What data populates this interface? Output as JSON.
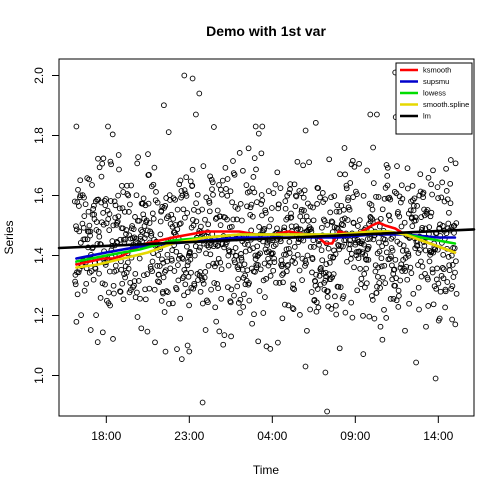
{
  "chart_data": {
    "type": "scatter",
    "title": "Demo with 1st var",
    "xlabel": "Time",
    "ylabel": "Series",
    "x_unit": "hours",
    "xlim": [
      15.15,
      40.15
    ],
    "ylim": [
      0.865,
      2.055
    ],
    "x_ticks": [
      {
        "value": 18,
        "label": "18:00"
      },
      {
        "value": 23,
        "label": "23:00"
      },
      {
        "value": 28,
        "label": "04:00"
      },
      {
        "value": 33,
        "label": "09:00"
      },
      {
        "value": 38,
        "label": "14:00"
      }
    ],
    "y_ticks": [
      {
        "value": 1.0,
        "label": "1.0"
      },
      {
        "value": 1.2,
        "label": "1.2"
      },
      {
        "value": 1.4,
        "label": "1.4"
      },
      {
        "value": 1.6,
        "label": "1.6"
      },
      {
        "value": 1.8,
        "label": "1.8"
      },
      {
        "value": 2.0,
        "label": "2.0"
      }
    ],
    "grid": false,
    "legend_position": "top-right",
    "points": {
      "count": 1200,
      "x_range": [
        16.1,
        39.1
      ],
      "mean": 1.45,
      "sd": 0.14,
      "notable": [
        {
          "x": 16.2,
          "y": 1.83
        },
        {
          "x": 18.1,
          "y": 1.83
        },
        {
          "x": 22.7,
          "y": 2.0
        },
        {
          "x": 23.2,
          "y": 1.99
        },
        {
          "x": 23.6,
          "y": 1.94
        },
        {
          "x": 23.4,
          "y": 1.87
        },
        {
          "x": 23.8,
          "y": 0.91
        },
        {
          "x": 23.0,
          "y": 1.08
        },
        {
          "x": 22.9,
          "y": 1.1
        },
        {
          "x": 27.4,
          "y": 1.83
        },
        {
          "x": 27.0,
          "y": 1.83
        },
        {
          "x": 31.3,
          "y": 0.88
        },
        {
          "x": 31.2,
          "y": 1.01
        },
        {
          "x": 30.0,
          "y": 1.03
        },
        {
          "x": 35.4,
          "y": 2.01
        },
        {
          "x": 33.9,
          "y": 1.87
        },
        {
          "x": 34.3,
          "y": 1.87
        }
      ]
    },
    "series": [
      {
        "name": "ksmooth",
        "color": "#ff0000",
        "x": [
          16.2,
          17.0,
          17.8,
          18.4,
          19.0,
          19.6,
          20.4,
          21.2,
          22.0,
          23.0,
          24.0,
          25.0,
          26.0,
          27.0,
          28.0,
          29.0,
          30.0,
          30.6,
          31.2,
          31.6,
          32.0,
          32.8,
          33.4,
          34.0,
          34.4,
          34.8,
          35.4,
          36.0,
          37.0,
          38.0,
          39.0
        ],
        "y": [
          1.37,
          1.38,
          1.39,
          1.39,
          1.4,
          1.42,
          1.44,
          1.45,
          1.46,
          1.47,
          1.48,
          1.48,
          1.48,
          1.47,
          1.47,
          1.48,
          1.47,
          1.47,
          1.44,
          1.44,
          1.48,
          1.47,
          1.48,
          1.5,
          1.51,
          1.5,
          1.49,
          1.47,
          1.45,
          1.43,
          1.41
        ]
      },
      {
        "name": "supsmu",
        "color": "#0000cc",
        "x": [
          16.2,
          18.0,
          20.0,
          22.0,
          24.0,
          26.0,
          28.0,
          30.0,
          32.0,
          34.0,
          36.0,
          38.0,
          39.0
        ],
        "y": [
          1.39,
          1.41,
          1.43,
          1.44,
          1.45,
          1.46,
          1.46,
          1.46,
          1.46,
          1.47,
          1.47,
          1.46,
          1.46
        ]
      },
      {
        "name": "lowess",
        "color": "#00dd00",
        "x": [
          16.2,
          18.0,
          20.0,
          22.0,
          24.0,
          26.0,
          28.0,
          30.0,
          32.0,
          34.0,
          35.0,
          36.0,
          37.0,
          38.0,
          39.0
        ],
        "y": [
          1.38,
          1.4,
          1.42,
          1.45,
          1.46,
          1.47,
          1.47,
          1.47,
          1.47,
          1.48,
          1.48,
          1.47,
          1.46,
          1.45,
          1.44
        ]
      },
      {
        "name": "smooth.spline",
        "color": "#e6d800",
        "x": [
          16.2,
          17.5,
          19.0,
          20.5,
          22.0,
          24.0,
          26.0,
          28.0,
          30.0,
          32.0,
          34.0,
          35.0,
          36.0,
          37.0,
          38.0,
          39.0
        ],
        "y": [
          1.36,
          1.37,
          1.39,
          1.41,
          1.44,
          1.46,
          1.47,
          1.47,
          1.47,
          1.47,
          1.48,
          1.48,
          1.47,
          1.45,
          1.43,
          1.41
        ]
      },
      {
        "name": "lm",
        "color": "#000000",
        "x": [
          15.15,
          40.15
        ],
        "y": [
          1.425,
          1.487
        ]
      }
    ]
  }
}
